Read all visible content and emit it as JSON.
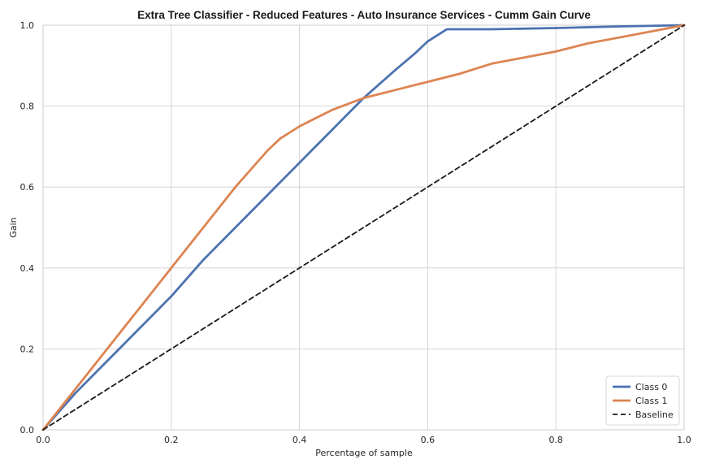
{
  "chart_data": {
    "type": "line",
    "title": "Extra Tree Classifier - Reduced Features - Auto Insurance Services - Cumm Gain Curve",
    "xlabel": "Percentage of sample",
    "ylabel": "Gain",
    "xlim": [
      0.0,
      1.0
    ],
    "ylim": [
      0.0,
      1.0
    ],
    "x_ticks": [
      "0.0",
      "0.2",
      "0.4",
      "0.6",
      "0.8",
      "1.0"
    ],
    "y_ticks": [
      "0.0",
      "0.2",
      "0.4",
      "0.6",
      "0.8",
      "1.0"
    ],
    "grid": true,
    "legend_position": "lower-right",
    "series": [
      {
        "name": "Class 0",
        "color": "#4c72b0",
        "style": "solid",
        "x": [
          0.0,
          0.05,
          0.1,
          0.15,
          0.2,
          0.25,
          0.3,
          0.35,
          0.4,
          0.45,
          0.5,
          0.55,
          0.58,
          0.6,
          0.62,
          0.63,
          0.7,
          0.8,
          0.9,
          1.0
        ],
        "y": [
          0.0,
          0.09,
          0.17,
          0.25,
          0.33,
          0.42,
          0.5,
          0.58,
          0.66,
          0.74,
          0.82,
          0.89,
          0.93,
          0.96,
          0.98,
          0.99,
          0.99,
          0.993,
          0.997,
          1.0
        ]
      },
      {
        "name": "Class 1",
        "color": "#dd8452",
        "style": "solid",
        "x": [
          0.0,
          0.05,
          0.1,
          0.15,
          0.2,
          0.25,
          0.3,
          0.35,
          0.37,
          0.4,
          0.45,
          0.5,
          0.55,
          0.6,
          0.65,
          0.7,
          0.75,
          0.8,
          0.85,
          0.9,
          0.95,
          1.0
        ],
        "y": [
          0.0,
          0.1,
          0.2,
          0.3,
          0.4,
          0.5,
          0.6,
          0.69,
          0.72,
          0.75,
          0.79,
          0.82,
          0.84,
          0.86,
          0.88,
          0.905,
          0.92,
          0.935,
          0.955,
          0.97,
          0.985,
          1.0
        ]
      },
      {
        "name": "Baseline",
        "color": "#1a1a1a",
        "style": "dashed",
        "x": [
          0.0,
          1.0
        ],
        "y": [
          0.0,
          1.0
        ]
      }
    ]
  }
}
